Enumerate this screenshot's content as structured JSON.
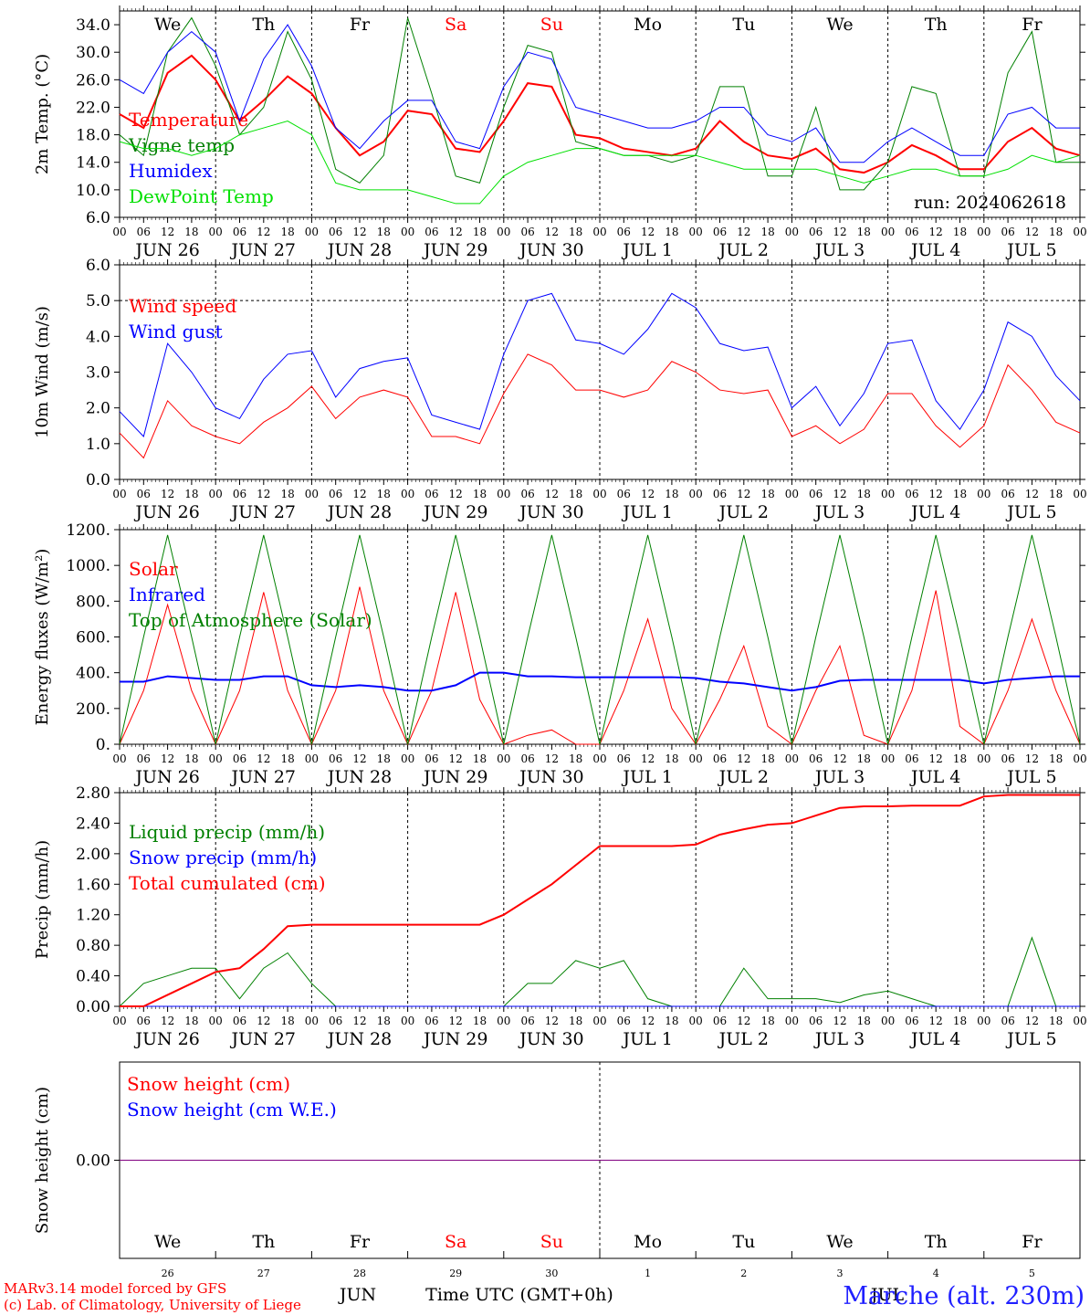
{
  "colors": {
    "red": "#ff0000",
    "blue": "#0000ff",
    "green": "#008000",
    "lightgreen": "#00e000",
    "purple": "#800080",
    "grid": "#000000"
  },
  "days": [
    "JUN 26",
    "JUN 27",
    "JUN 28",
    "JUN 29",
    "JUN 30",
    "JUL  1",
    "JUL  2",
    "JUL  3",
    "JUL  4",
    "JUL  5"
  ],
  "weekdays": [
    {
      "label": "We",
      "color": "#000000"
    },
    {
      "label": "Th",
      "color": "#000000"
    },
    {
      "label": "Fr",
      "color": "#000000"
    },
    {
      "label": "Sa",
      "color": "#ff0000"
    },
    {
      "label": "Su",
      "color": "#ff0000"
    },
    {
      "label": "Mo",
      "color": "#000000"
    },
    {
      "label": "Tu",
      "color": "#000000"
    },
    {
      "label": "We",
      "color": "#000000"
    },
    {
      "label": "Th",
      "color": "#000000"
    },
    {
      "label": "Fr",
      "color": "#000000"
    }
  ],
  "hour_ticks": [
    "00",
    "06",
    "12",
    "18"
  ],
  "bottom_axis": {
    "day_numbers": [
      "26",
      "27",
      "28",
      "29",
      "30",
      "1",
      "2",
      "3",
      "4",
      "5"
    ],
    "month_left": "JUN",
    "month_right": "JUL",
    "title": "Time UTC (GMT+0h)"
  },
  "footer": {
    "line1": "MARv3.14 model forced by GFS",
    "line2": "(c) Lab. of Climatology, University of Liege",
    "station": "Marche (alt. 230m)"
  },
  "chart_data": [
    {
      "type": "line",
      "ylabel": "2m Temp. (°C)",
      "ylim": [
        6,
        36
      ],
      "yticks": [
        "6.0",
        "10.0",
        "14.0",
        "18.0",
        "22.0",
        "26.0",
        "30.0",
        "34.0"
      ],
      "run_label": "run: 2024062618",
      "x_hours": [
        0,
        6,
        12,
        18,
        24,
        30,
        36,
        42,
        48,
        54,
        60,
        66,
        72,
        78,
        84,
        90,
        96,
        102,
        108,
        114,
        120,
        126,
        132,
        138,
        144,
        150,
        156,
        162,
        168,
        174,
        180,
        186,
        192,
        198,
        204,
        210,
        216,
        222,
        228,
        234,
        240
      ],
      "series": [
        {
          "name": "Temperature",
          "color": "#ff0000",
          "values": [
            21,
            19,
            27,
            29.5,
            26,
            20,
            23,
            26.5,
            24,
            19,
            15,
            17,
            21.5,
            21,
            16,
            15.5,
            20,
            25.5,
            25,
            18,
            17.5,
            16,
            15.5,
            15,
            16,
            20,
            17,
            15,
            14.5,
            16,
            13,
            12.5,
            14,
            16.5,
            15,
            13,
            13,
            17,
            19,
            16,
            15
          ]
        },
        {
          "name": "Vigne temp",
          "color": "#008000",
          "values": [
            18,
            15,
            30,
            35,
            28,
            18,
            22,
            33,
            26,
            13,
            11,
            15,
            35,
            24,
            12,
            11,
            22,
            31,
            30,
            17,
            16,
            15,
            15,
            14,
            15,
            25,
            25,
            12,
            12,
            22,
            10,
            10,
            14,
            25,
            24,
            12,
            12,
            27,
            33,
            14,
            14
          ]
        },
        {
          "name": "Humidex",
          "color": "#0000ff",
          "values": [
            26,
            24,
            30,
            33,
            30,
            20,
            29,
            34,
            28,
            19,
            16,
            20,
            23,
            23,
            17,
            16,
            25,
            30,
            29,
            22,
            21,
            20,
            19,
            19,
            20,
            22,
            22,
            18,
            17,
            19,
            14,
            14,
            17,
            19,
            17,
            15,
            15,
            21,
            22,
            19,
            19
          ]
        },
        {
          "name": "DewPoint Temp",
          "color": "#00e000",
          "values": [
            17,
            16,
            16,
            15,
            16,
            18,
            19,
            20,
            18,
            11,
            10,
            10,
            10,
            9,
            8,
            8,
            12,
            14,
            15,
            16,
            16,
            15,
            15,
            15,
            15,
            14,
            13,
            13,
            13,
            13,
            12,
            11,
            12,
            13,
            13,
            12,
            12,
            13,
            15,
            14,
            15
          ]
        }
      ]
    },
    {
      "type": "line",
      "ylabel": "10m Wind (m/s)",
      "ylim": [
        0,
        6
      ],
      "yticks": [
        "0.0",
        "1.0",
        "2.0",
        "3.0",
        "4.0",
        "5.0",
        "6.0"
      ],
      "x_hours": [
        0,
        6,
        12,
        18,
        24,
        30,
        36,
        42,
        48,
        54,
        60,
        66,
        72,
        78,
        84,
        90,
        96,
        102,
        108,
        114,
        120,
        126,
        132,
        138,
        144,
        150,
        156,
        162,
        168,
        174,
        180,
        186,
        192,
        198,
        204,
        210,
        216,
        222,
        228,
        234,
        240
      ],
      "series": [
        {
          "name": "Wind speed",
          "color": "#ff0000",
          "values": [
            1.3,
            0.6,
            2.2,
            1.5,
            1.2,
            1.0,
            1.6,
            2.0,
            2.6,
            1.7,
            2.3,
            2.5,
            2.3,
            1.2,
            1.2,
            1.0,
            2.4,
            3.5,
            3.2,
            2.5,
            2.5,
            2.3,
            2.5,
            3.3,
            3.0,
            2.5,
            2.4,
            2.5,
            1.2,
            1.5,
            1.0,
            1.4,
            2.4,
            2.4,
            1.5,
            0.9,
            1.5,
            3.2,
            2.5,
            1.6,
            1.3
          ]
        },
        {
          "name": "Wind gust",
          "color": "#0000ff",
          "values": [
            1.9,
            1.2,
            3.8,
            3.0,
            2.0,
            1.7,
            2.8,
            3.5,
            3.6,
            2.3,
            3.1,
            3.3,
            3.4,
            1.8,
            1.6,
            1.4,
            3.5,
            5.0,
            5.2,
            3.9,
            3.8,
            3.5,
            4.2,
            5.2,
            4.8,
            3.8,
            3.6,
            3.7,
            2.0,
            2.6,
            1.5,
            2.4,
            3.8,
            3.9,
            2.2,
            1.4,
            2.5,
            4.4,
            4.0,
            2.9,
            2.2
          ]
        }
      ]
    },
    {
      "type": "line",
      "ylabel": "Energy fluxes (W/m²)",
      "ylim": [
        0,
        1200
      ],
      "yticks": [
        "0.",
        "200.",
        "400.",
        "600.",
        "800.",
        "1000.",
        "1200."
      ],
      "x_hours": [
        0,
        6,
        12,
        18,
        24,
        30,
        36,
        42,
        48,
        54,
        60,
        66,
        72,
        78,
        84,
        90,
        96,
        102,
        108,
        114,
        120,
        126,
        132,
        138,
        144,
        150,
        156,
        162,
        168,
        174,
        180,
        186,
        192,
        198,
        204,
        210,
        216,
        222,
        228,
        234,
        240
      ],
      "series": [
        {
          "name": "Solar",
          "color": "#ff0000",
          "values": [
            0,
            300,
            780,
            300,
            0,
            300,
            850,
            300,
            0,
            300,
            880,
            300,
            0,
            300,
            850,
            250,
            0,
            50,
            80,
            0,
            0,
            300,
            700,
            200,
            0,
            250,
            550,
            100,
            0,
            300,
            550,
            50,
            0,
            300,
            860,
            100,
            0,
            300,
            700,
            300,
            0
          ]
        },
        {
          "name": "Infrared",
          "color": "#0000ff",
          "values": [
            350,
            350,
            380,
            370,
            360,
            360,
            380,
            380,
            330,
            320,
            330,
            320,
            300,
            300,
            330,
            400,
            400,
            380,
            380,
            375,
            375,
            375,
            375,
            375,
            370,
            350,
            340,
            320,
            300,
            320,
            355,
            360,
            360,
            360,
            360,
            360,
            340,
            360,
            370,
            380,
            380
          ]
        },
        {
          "name": "Top of Atmosphere (Solar)",
          "color": "#008000",
          "values": [
            0,
            600,
            1170,
            600,
            0,
            600,
            1170,
            600,
            0,
            600,
            1170,
            600,
            0,
            600,
            1170,
            600,
            0,
            600,
            1170,
            600,
            0,
            600,
            1170,
            600,
            0,
            600,
            1170,
            600,
            0,
            600,
            1170,
            600,
            0,
            600,
            1170,
            600,
            0,
            600,
            1170,
            600,
            0
          ]
        }
      ]
    },
    {
      "type": "line",
      "ylabel": "Precip (mm/h)",
      "ylim": [
        0,
        2.8
      ],
      "yticks": [
        "0.00",
        "0.40",
        "0.80",
        "1.20",
        "1.60",
        "2.00",
        "2.40",
        "2.80"
      ],
      "x_hours": [
        0,
        6,
        12,
        18,
        24,
        30,
        36,
        42,
        48,
        54,
        60,
        66,
        72,
        78,
        84,
        90,
        96,
        102,
        108,
        114,
        120,
        126,
        132,
        138,
        144,
        150,
        156,
        162,
        168,
        174,
        180,
        186,
        192,
        198,
        204,
        210,
        216,
        222,
        228,
        234,
        240
      ],
      "series": [
        {
          "name": "Liquid precip (mm/h)",
          "color": "#008000",
          "values": [
            0,
            0.3,
            0.4,
            0.5,
            0.5,
            0.1,
            0.5,
            0.7,
            0.3,
            0,
            0,
            0,
            0,
            0,
            0,
            0,
            0,
            0.3,
            0.3,
            0.6,
            0.5,
            0.6,
            0.1,
            0,
            0,
            0,
            0.5,
            0.1,
            0.1,
            0.1,
            0.05,
            0.15,
            0.2,
            0.1,
            0,
            0,
            0,
            0,
            0.9,
            0,
            0
          ]
        },
        {
          "name": "Snow precip (mm/h)",
          "color": "#0000ff",
          "values": [
            0,
            0,
            0,
            0,
            0,
            0,
            0,
            0,
            0,
            0,
            0,
            0,
            0,
            0,
            0,
            0,
            0,
            0,
            0,
            0,
            0,
            0,
            0,
            0,
            0,
            0,
            0,
            0,
            0,
            0,
            0,
            0,
            0,
            0,
            0,
            0,
            0,
            0,
            0,
            0,
            0
          ]
        },
        {
          "name": "Total cumulated (cm)",
          "color": "#ff0000",
          "values": [
            0,
            0,
            0.15,
            0.3,
            0.45,
            0.5,
            0.75,
            1.05,
            1.07,
            1.07,
            1.07,
            1.07,
            1.07,
            1.07,
            1.07,
            1.07,
            1.2,
            1.4,
            1.6,
            1.85,
            2.1,
            2.1,
            2.1,
            2.1,
            2.12,
            2.25,
            2.32,
            2.38,
            2.4,
            2.5,
            2.6,
            2.62,
            2.62,
            2.63,
            2.63,
            2.63,
            2.75,
            2.77,
            2.77,
            2.77,
            2.77
          ]
        }
      ]
    },
    {
      "type": "line",
      "ylabel": "Snow height (cm)",
      "yticks": [
        "0.00"
      ],
      "ylim": [
        -1,
        1
      ],
      "x_hours": [
        0,
        240
      ],
      "series": [
        {
          "name": "Snow height (cm)",
          "color": "#ff0000",
          "values": [
            0,
            0
          ]
        },
        {
          "name": "Snow height (cm W.E.)",
          "color": "#0000ff",
          "values": [
            0,
            0
          ]
        }
      ]
    }
  ]
}
